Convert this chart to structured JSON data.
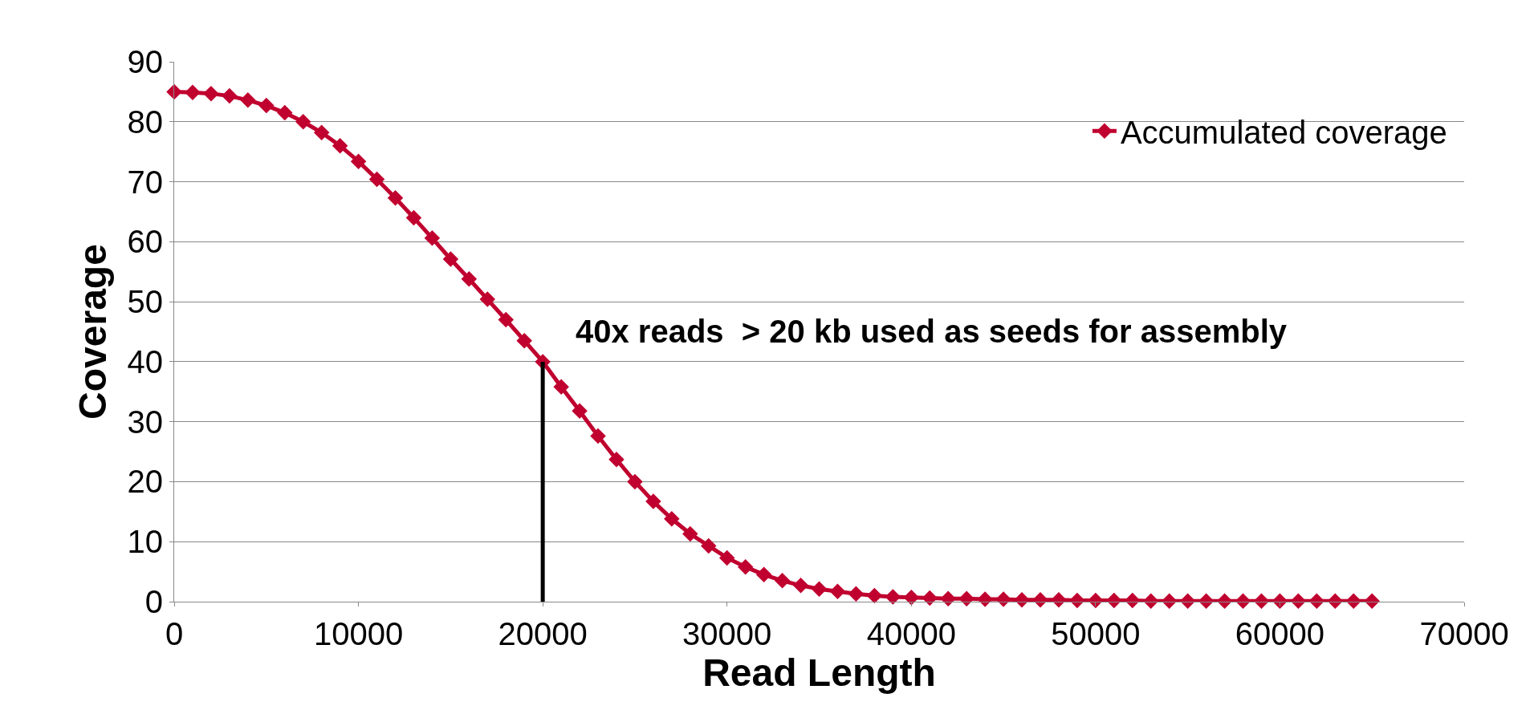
{
  "chart_data": {
    "type": "line",
    "xlabel": "Read Length",
    "ylabel": "Coverage",
    "x": [
      0,
      1000,
      2000,
      3000,
      4000,
      5000,
      6000,
      7000,
      8000,
      9000,
      10000,
      11000,
      12000,
      13000,
      14000,
      15000,
      16000,
      17000,
      18000,
      19000,
      20000,
      21000,
      22000,
      23000,
      24000,
      25000,
      26000,
      27000,
      28000,
      29000,
      30000,
      31000,
      32000,
      33000,
      34000,
      35000,
      36000,
      37000,
      38000,
      39000,
      40000,
      41000,
      42000,
      43000,
      44000,
      45000,
      46000,
      47000,
      48000,
      49000,
      50000,
      51000,
      52000,
      53000,
      54000,
      55000,
      56000,
      57000,
      58000,
      59000,
      60000,
      61000,
      62000,
      63000,
      64000,
      65000
    ],
    "series": [
      {
        "name": "Accumulated coverage",
        "color": "#c0002f",
        "marker": "diamond",
        "values": [
          85,
          84.9,
          84.7,
          84.3,
          83.6,
          82.7,
          81.5,
          80,
          78.2,
          76,
          73.4,
          70.4,
          67.3,
          64,
          60.6,
          57.1,
          53.8,
          50.4,
          47,
          43.5,
          40,
          35.8,
          31.8,
          27.6,
          23.7,
          20,
          16.7,
          13.8,
          11.3,
          9.3,
          7.3,
          5.8,
          4.5,
          3.5,
          2.7,
          2.1,
          1.7,
          1.3,
          1.0,
          0.8,
          0.7,
          0.6,
          0.5,
          0.5,
          0.4,
          0.4,
          0.3,
          0.3,
          0.3,
          0.2,
          0.2,
          0.2,
          0.2,
          0.1,
          0.1,
          0.1,
          0.1,
          0.1,
          0.1,
          0.1,
          0.1,
          0.1,
          0.1,
          0.1,
          0.1,
          0.1
        ]
      },
      {
        "color": "#000000",
        "marker": "none",
        "x": [
          20000,
          20000
        ],
        "values": [
          0,
          40
        ]
      }
    ],
    "annotations": [
      "40x reads  > 20 kb used as seeds for assembly"
    ],
    "xlim": [
      0,
      70000
    ],
    "xticks": [
      0,
      10000,
      20000,
      30000,
      40000,
      50000,
      60000,
      70000
    ],
    "ylim": [
      0,
      90
    ],
    "yticks": [
      0,
      10,
      20,
      30,
      40,
      50,
      60,
      70,
      80,
      90
    ],
    "grid": "y",
    "legend": "top right"
  }
}
